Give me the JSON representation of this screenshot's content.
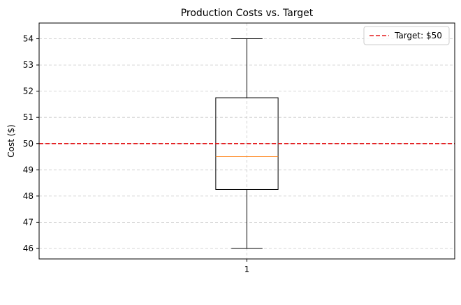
{
  "chart_data": {
    "type": "box",
    "title": "Production Costs vs. Target",
    "xlabel": "",
    "ylabel": "Cost ($)",
    "ylim": [
      45.6,
      54.6
    ],
    "yticks": [
      46,
      47,
      48,
      49,
      50,
      51,
      52,
      53,
      54
    ],
    "xticks": [
      "1"
    ],
    "grid": true,
    "boxes": [
      {
        "label": "1",
        "whisker_low": 46,
        "q1": 48.25,
        "median": 49.5,
        "q3": 51.75,
        "whisker_high": 54
      }
    ],
    "reference_line": {
      "label": "Target: $50",
      "value": 50,
      "color": "#e41a1c",
      "style": "dashed"
    },
    "legend": {
      "position": "top-right",
      "entries": [
        "Target: $50"
      ]
    },
    "colors": {
      "box_edge": "#000000",
      "median": "#ff7f0e",
      "grid": "#c8c8c8",
      "target": "#e41a1c"
    }
  }
}
